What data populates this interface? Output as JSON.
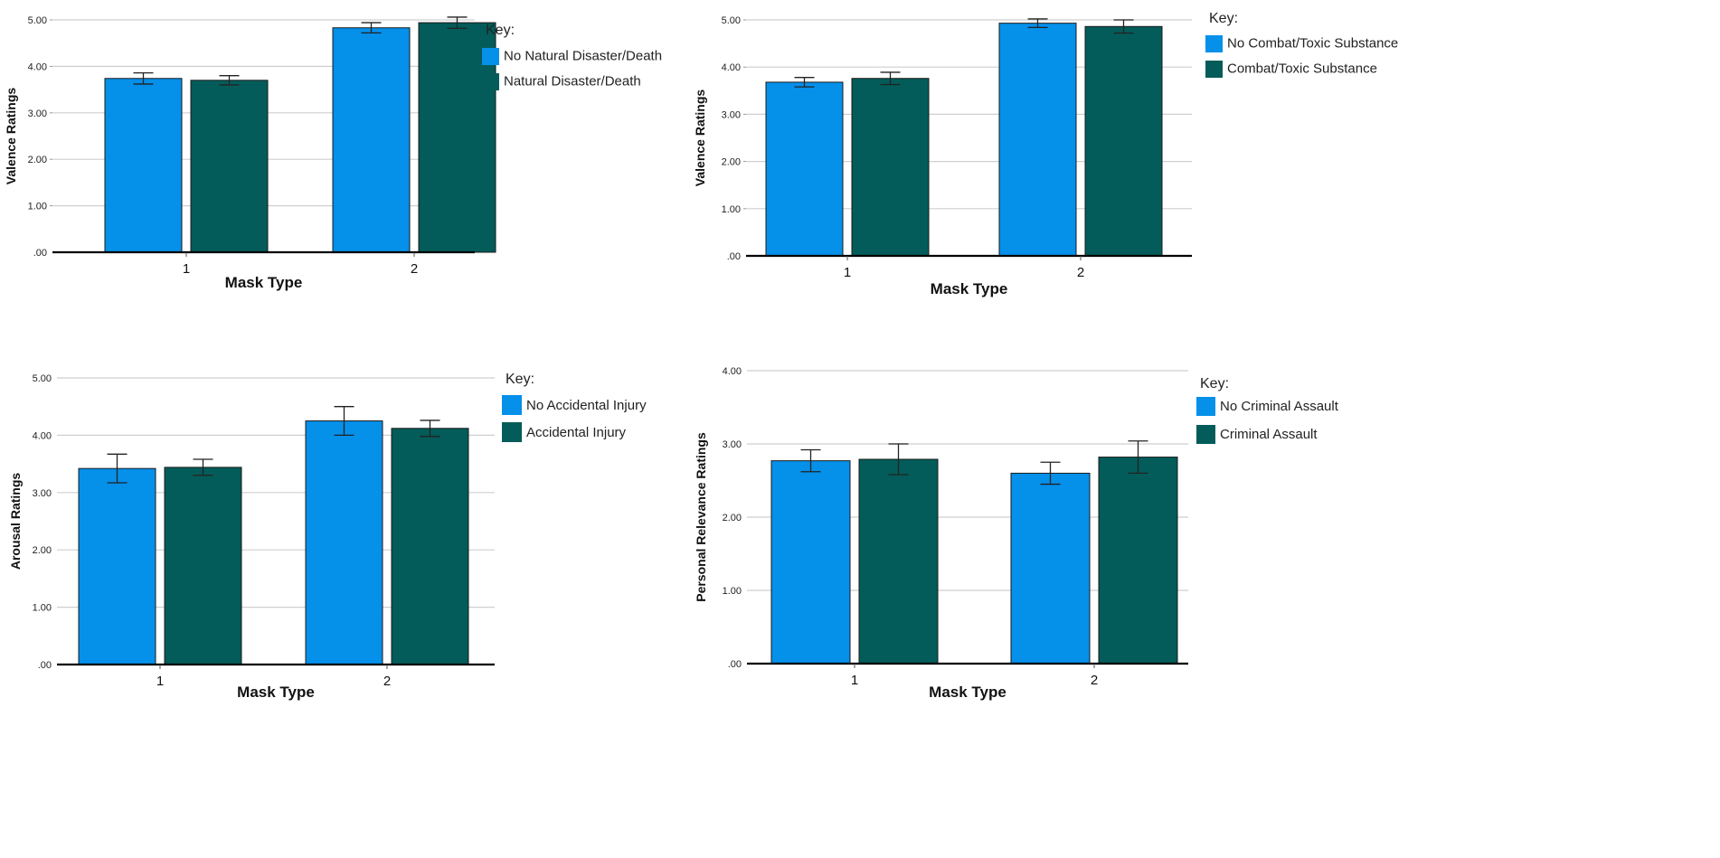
{
  "colors": {
    "series1": "#0590ea",
    "series2": "#035c59",
    "grid": "#cfcfcf",
    "axis": "#000000",
    "errbar": "#222222"
  },
  "chart_data": [
    {
      "type": "bar",
      "categories": [
        "1",
        "2"
      ],
      "xlabel": "Mask Type",
      "ylabel": "Valence Ratings",
      "ylim": [
        0,
        5
      ],
      "yticks": [
        ".00",
        "1.00",
        "2.00",
        "3.00",
        "4.00",
        "5.00"
      ],
      "legend_title": "Key:",
      "series": [
        {
          "name": "No  Natural Disaster/Death",
          "values": [
            3.74,
            4.83
          ],
          "err": [
            0.12,
            0.11
          ]
        },
        {
          "name": "Natural Disaster/Death",
          "values": [
            3.7,
            4.94
          ],
          "err": [
            0.1,
            0.12
          ]
        }
      ]
    },
    {
      "type": "bar",
      "categories": [
        "1",
        "2"
      ],
      "xlabel": "Mask Type",
      "ylabel": "Valence Ratings",
      "ylim": [
        0,
        5
      ],
      "yticks": [
        ".00",
        "1.00",
        "2.00",
        "3.00",
        "4.00",
        "5.00"
      ],
      "legend_title": "Key:",
      "series": [
        {
          "name": "No Combat/Toxic Substance",
          "values": [
            3.68,
            4.93
          ],
          "err": [
            0.1,
            0.09
          ]
        },
        {
          "name": "Combat/Toxic Substance",
          "values": [
            3.76,
            4.86
          ],
          "err": [
            0.13,
            0.14
          ]
        }
      ]
    },
    {
      "type": "bar",
      "categories": [
        "1",
        "2"
      ],
      "xlabel": "Mask Type",
      "ylabel": "Arousal Ratings",
      "ylim": [
        0,
        5
      ],
      "yticks": [
        ".00",
        "1.00",
        "2.00",
        "3.00",
        "4.00",
        "5.00"
      ],
      "legend_title": "Key:",
      "series": [
        {
          "name": "No Accidental Injury",
          "values": [
            3.42,
            4.25
          ],
          "err": [
            0.25,
            0.25
          ]
        },
        {
          "name": "Accidental Injury",
          "values": [
            3.44,
            4.12
          ],
          "err": [
            0.14,
            0.14
          ]
        }
      ]
    },
    {
      "type": "bar",
      "categories": [
        "1",
        "2"
      ],
      "xlabel": "Mask Type",
      "ylabel": "Personal Relevance Ratings",
      "ylim": [
        0,
        4
      ],
      "yticks": [
        ".00",
        "1.00",
        "2.00",
        "3.00",
        "4.00"
      ],
      "legend_title": "Key:",
      "series": [
        {
          "name": "No Criminal Assault",
          "values": [
            2.77,
            2.6
          ],
          "err": [
            0.15,
            0.15
          ]
        },
        {
          "name": "Criminal Assault",
          "values": [
            2.79,
            2.82
          ],
          "err": [
            0.21,
            0.22
          ]
        }
      ]
    }
  ]
}
